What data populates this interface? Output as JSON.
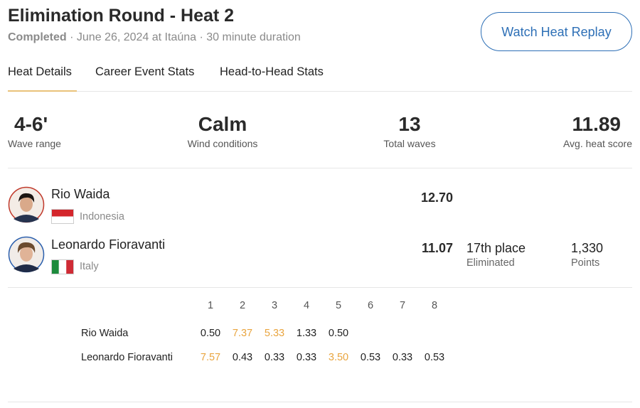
{
  "header": {
    "title": "Elimination Round - Heat 2",
    "status": "Completed",
    "details": "· June 26, 2024 at Itaúna · 30 minute duration",
    "button": "Watch Heat Replay"
  },
  "tabs": [
    "Heat Details",
    "Career Event Stats",
    "Head-to-Head Stats"
  ],
  "stats": [
    {
      "value": "4-6'",
      "label": "Wave range"
    },
    {
      "value": "Calm",
      "label": "Wind conditions"
    },
    {
      "value": "13",
      "label": "Total waves"
    },
    {
      "value": "11.89",
      "label": "Avg. heat score"
    }
  ],
  "surfers": [
    {
      "name": "Rio Waida",
      "country": "Indonesia",
      "score": "12.70"
    },
    {
      "name": "Leonardo Fioravanti",
      "country": "Italy",
      "score": "11.07",
      "result": "17th place",
      "result_note": "Eliminated",
      "points": "1,330",
      "points_label": "Points"
    }
  ],
  "waves": {
    "headers": [
      "1",
      "2",
      "3",
      "4",
      "5",
      "6",
      "7",
      "8"
    ],
    "highlight_color": "#e9a53f",
    "rows": [
      {
        "name": "Rio Waida",
        "scores": [
          "0.50",
          "7.37",
          "5.33",
          "1.33",
          "0.50"
        ],
        "counting": [
          1,
          2
        ]
      },
      {
        "name": "Leonardo Fioravanti",
        "scores": [
          "7.57",
          "0.43",
          "0.33",
          "0.33",
          "3.50",
          "0.53",
          "0.33",
          "0.53"
        ],
        "counting": [
          0,
          4
        ]
      }
    ]
  }
}
